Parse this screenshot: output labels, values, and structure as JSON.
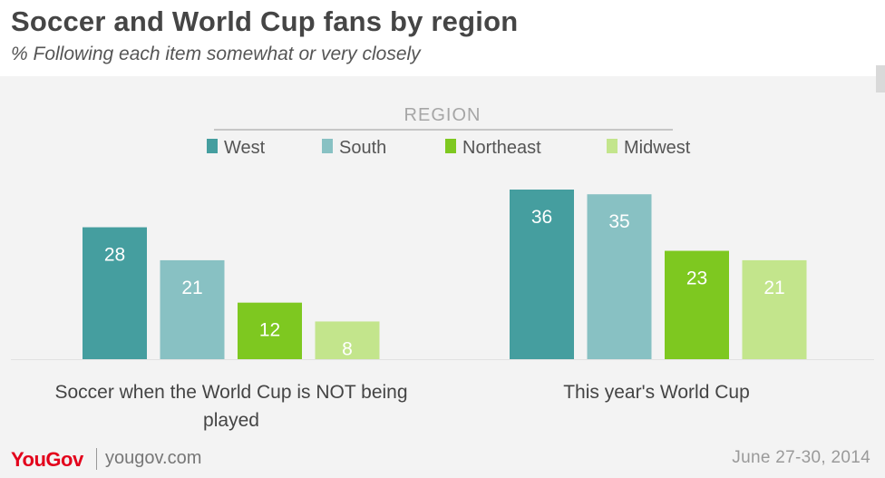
{
  "header": {
    "title": "Soccer and World Cup fans by region",
    "subtitle": "% Following each item somewhat or very closely"
  },
  "footer": {
    "logo": "YouGov",
    "url": "yougov.com",
    "date": "June 27-30, 2014"
  },
  "colors": {
    "West": "#459e9f",
    "South": "#88c1c3",
    "Northeast": "#7ec820",
    "Midwest": "#c3e58c"
  },
  "chart_data": {
    "type": "bar",
    "legend_title": "REGION",
    "legend_position": "top-center",
    "categories": [
      "Soccer when the World Cup is NOT being played",
      "This year's World Cup"
    ],
    "series": [
      {
        "name": "West",
        "values": [
          28,
          36
        ]
      },
      {
        "name": "South",
        "values": [
          21,
          35
        ]
      },
      {
        "name": "Northeast",
        "values": [
          12,
          23
        ]
      },
      {
        "name": "Midwest",
        "values": [
          8,
          21
        ]
      }
    ],
    "ylim": [
      0,
      40
    ],
    "grid": false,
    "data_labels": true
  }
}
